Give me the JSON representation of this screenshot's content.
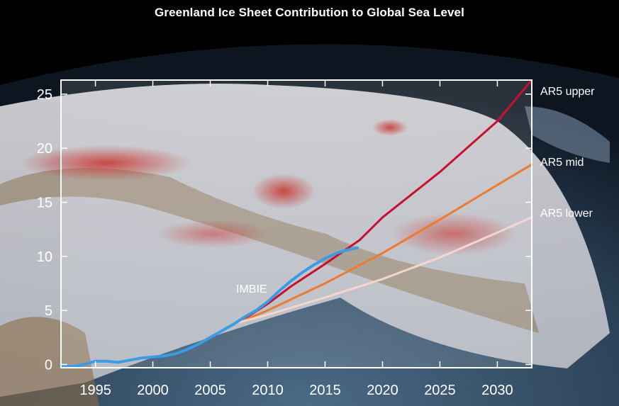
{
  "title": "Greenland Ice Sheet Contribution to Global Sea Level",
  "chart_data": {
    "type": "line",
    "title": "Greenland Ice Sheet Contribution to Global Sea Level",
    "xlabel": "",
    "ylabel": "",
    "xlim": [
      1992,
      2033
    ],
    "ylim": [
      -0.3,
      26.3
    ],
    "xticks": [
      1995,
      2000,
      2005,
      2010,
      2015,
      2020,
      2025,
      2030
    ],
    "yticks": [
      0,
      5,
      10,
      15,
      20,
      25
    ],
    "grid": false,
    "series": [
      {
        "name": "AR5 upper",
        "color": "#c8102e",
        "x": [
          2007.5,
          2010,
          2012,
          2015,
          2018,
          2020,
          2025,
          2030,
          2033
        ],
        "y": [
          3.9,
          5.6,
          7.2,
          9.3,
          11.5,
          13.6,
          17.8,
          22.5,
          26.3
        ]
      },
      {
        "name": "AR5 mid",
        "color": "#ee7a30",
        "x": [
          2007.5,
          2010,
          2015,
          2020,
          2025,
          2030,
          2033
        ],
        "y": [
          3.9,
          5.0,
          7.5,
          10.3,
          13.4,
          16.6,
          18.5
        ]
      },
      {
        "name": "AR5 lower",
        "color": "#f4d6cf",
        "x": [
          2007.5,
          2010,
          2015,
          2020,
          2025,
          2030,
          2033
        ],
        "y": [
          3.9,
          4.6,
          6.2,
          7.9,
          9.9,
          12.2,
          13.6
        ]
      },
      {
        "name": "IMBIE",
        "color": "#3b9be3",
        "x": [
          1992,
          1993,
          1994,
          1995,
          1996,
          1997,
          1998,
          1999,
          2000,
          2001,
          2002,
          2003,
          2004,
          2005,
          2006,
          2007,
          2008,
          2009,
          2010,
          2011,
          2012,
          2013,
          2014,
          2015,
          2016,
          2017,
          2017.8
        ],
        "y": [
          -0.1,
          -0.2,
          0.0,
          0.3,
          0.3,
          0.2,
          0.4,
          0.6,
          0.7,
          0.8,
          1.0,
          1.4,
          1.9,
          2.5,
          3.1,
          3.7,
          4.4,
          5.0,
          5.8,
          6.8,
          7.7,
          8.5,
          9.2,
          9.8,
          10.3,
          10.6,
          10.8
        ]
      }
    ]
  }
}
